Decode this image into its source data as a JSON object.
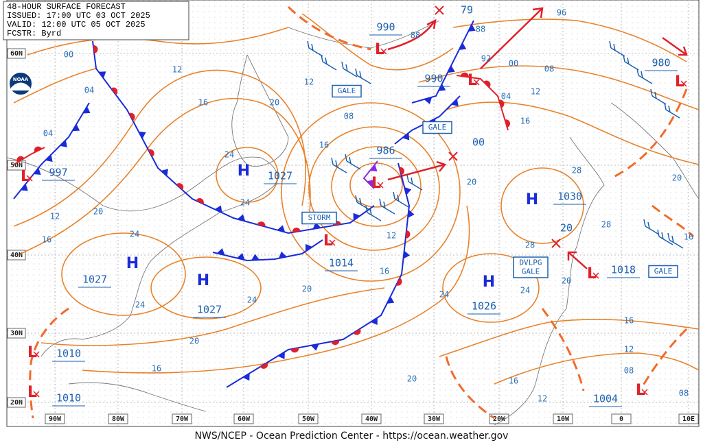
{
  "header": {
    "lines": [
      "48-HOUR SURFACE FORECAST",
      "ISSUED: 17:00 UTC 03 OCT 2025",
      "VALID: 12:00 UTC 05 OCT 2025",
      "FCSTR: Byrd"
    ]
  },
  "logo_text": "NOAA",
  "latitude_labels": [
    "60N",
    "50N",
    "40N",
    "30N",
    "20N"
  ],
  "longitude_labels": [
    "90W",
    "80W",
    "70W",
    "60W",
    "50W",
    "40W",
    "30W",
    "20W",
    "10W",
    "0",
    "10E"
  ],
  "highs": [
    {
      "symbol": "H",
      "pressure": "1027"
    },
    {
      "symbol": "H",
      "pressure": "1027"
    },
    {
      "symbol": "H",
      "pressure": "1027"
    },
    {
      "symbol": "H",
      "pressure": "1026"
    },
    {
      "symbol": "H",
      "pressure": "1030"
    }
  ],
  "lows": [
    {
      "symbol": "L",
      "pressure": "990"
    },
    {
      "symbol": "L",
      "pressure": "990"
    },
    {
      "symbol": "L",
      "pressure": "986"
    },
    {
      "symbol": "L",
      "pressure": "1014"
    },
    {
      "symbol": "L",
      "pressure": "997"
    },
    {
      "symbol": "L",
      "pressure": "1018"
    },
    {
      "symbol": "L",
      "pressure": "980"
    },
    {
      "symbol": "L",
      "pressure": "1010"
    },
    {
      "symbol": "L",
      "pressure": "1010"
    },
    {
      "symbol": "L",
      "pressure": "1004"
    }
  ],
  "center_labels": [
    "79",
    "00",
    "20"
  ],
  "isobar_labels": [
    "00",
    "12",
    "04",
    "16",
    "04",
    "20",
    "12",
    "08",
    "16",
    "24",
    "24",
    "20",
    "12",
    "16",
    "24",
    "12",
    "16",
    "20",
    "24",
    "24",
    "20",
    "16",
    "20",
    "24",
    "20",
    "24",
    "28",
    "28",
    "28",
    "20",
    "16",
    "12",
    "08",
    "16",
    "12",
    "08",
    "16",
    "20",
    "16",
    "12",
    "08",
    "04",
    "00",
    "92",
    "96",
    "88",
    "88"
  ],
  "warnings": [
    [
      "GALE"
    ],
    [
      "GALE"
    ],
    [
      "STORM"
    ],
    [
      "DVLPG",
      "GALE"
    ],
    [
      "GALE"
    ]
  ],
  "footer": "NWS/NCEP - Ocean Prediction Center - https://ocean.weather.gov"
}
